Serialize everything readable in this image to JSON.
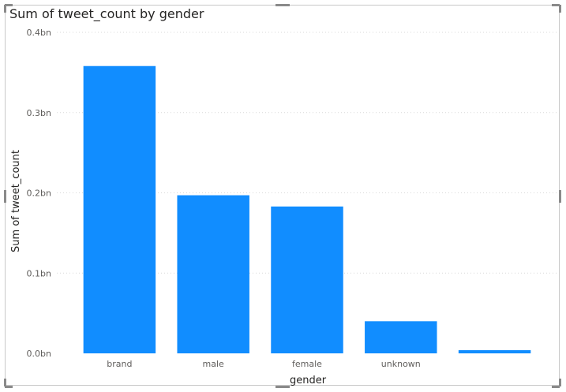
{
  "chart_data": {
    "type": "bar",
    "title": "Sum of tweet_count by gender",
    "xlabel": "gender",
    "ylabel": "Sum of tweet_count",
    "categories": [
      "brand",
      "male",
      "female",
      "unknown",
      ""
    ],
    "values": [
      0.358,
      0.197,
      0.183,
      0.04,
      0.004
    ],
    "ylim": [
      0,
      0.4
    ],
    "yticks": [
      {
        "value": 0,
        "label": "0.0bn"
      },
      {
        "value": 0.1,
        "label": "0.1bn"
      },
      {
        "value": 0.2,
        "label": "0.2bn"
      },
      {
        "value": 0.3,
        "label": "0.3bn"
      },
      {
        "value": 0.4,
        "label": "0.4bn"
      }
    ],
    "grid": true,
    "bar_color": "#118dff",
    "grid_color": "#d9d9d9"
  }
}
